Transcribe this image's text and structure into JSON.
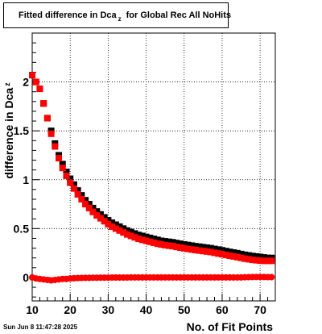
{
  "title": {
    "main": "Fitted difference in Dca",
    "subscript": "z",
    "suffix": "for Global Rec All NoHits"
  },
  "timestamp": "Sun Jun  8 11:47:28 2025",
  "chart_data": {
    "type": "scatter",
    "xlabel": "No. of Fit Points",
    "ylabel": "difference in Dca",
    "ylabel_subscript": "z",
    "xlim": [
      10,
      74
    ],
    "ylim": [
      -0.24,
      2.5
    ],
    "xticks": [
      10,
      20,
      30,
      40,
      50,
      60,
      70
    ],
    "yticks": [
      0,
      0.5,
      1,
      1.5,
      2
    ],
    "ytick_labels": [
      "0",
      "0.5",
      "1",
      "1.5",
      "2"
    ],
    "grid": true,
    "series": [
      {
        "color": "#000000",
        "marker": "square",
        "x": [
          10,
          11,
          12,
          13,
          14,
          15,
          16,
          17,
          18,
          19,
          20,
          21,
          22,
          23,
          24,
          25,
          26,
          27,
          28,
          29,
          30,
          31,
          32,
          33,
          34,
          35,
          36,
          37,
          38,
          39,
          40,
          41,
          42,
          43,
          44,
          45,
          46,
          47,
          48,
          49,
          50,
          51,
          52,
          53,
          54,
          55,
          56,
          57,
          58,
          59,
          60,
          61,
          62,
          63,
          64,
          65,
          66,
          67,
          68,
          69,
          70,
          71,
          72,
          73
        ],
        "y": [
          2.07,
          2.0,
          1.93,
          1.78,
          1.63,
          1.5,
          1.37,
          1.25,
          1.16,
          1.08,
          1.01,
          0.95,
          0.89,
          0.84,
          0.79,
          0.75,
          0.71,
          0.675,
          0.645,
          0.615,
          0.585,
          0.56,
          0.54,
          0.52,
          0.5,
          0.48,
          0.465,
          0.45,
          0.435,
          0.425,
          0.415,
          0.405,
          0.395,
          0.385,
          0.375,
          0.37,
          0.365,
          0.36,
          0.352,
          0.345,
          0.338,
          0.332,
          0.326,
          0.32,
          0.315,
          0.31,
          0.305,
          0.3,
          0.292,
          0.285,
          0.278,
          0.27,
          0.262,
          0.255,
          0.248,
          0.24,
          0.232,
          0.226,
          0.22,
          0.215,
          0.21,
          0.205,
          0.2,
          0.2
        ]
      },
      {
        "color": "#ff0000",
        "marker": "square",
        "x": [
          10,
          11,
          12,
          13,
          14,
          15,
          16,
          17,
          18,
          19,
          20,
          21,
          22,
          23,
          24,
          25,
          26,
          27,
          28,
          29,
          30,
          31,
          32,
          33,
          34,
          35,
          36,
          37,
          38,
          39,
          40,
          41,
          42,
          43,
          44,
          45,
          46,
          47,
          48,
          49,
          50,
          51,
          52,
          53,
          54,
          55,
          56,
          57,
          58,
          59,
          60,
          61,
          62,
          63,
          64,
          65,
          66,
          67,
          68,
          69,
          70,
          71,
          72,
          73
        ],
        "y": [
          2.07,
          2.0,
          1.93,
          1.78,
          1.63,
          1.47,
          1.34,
          1.22,
          1.12,
          1.04,
          0.97,
          0.91,
          0.85,
          0.8,
          0.75,
          0.71,
          0.67,
          0.635,
          0.605,
          0.575,
          0.545,
          0.52,
          0.5,
          0.48,
          0.46,
          0.44,
          0.425,
          0.41,
          0.395,
          0.385,
          0.375,
          0.365,
          0.355,
          0.345,
          0.337,
          0.33,
          0.325,
          0.32,
          0.312,
          0.305,
          0.298,
          0.292,
          0.286,
          0.28,
          0.275,
          0.27,
          0.265,
          0.26,
          0.252,
          0.245,
          0.238,
          0.23,
          0.222,
          0.215,
          0.208,
          0.2,
          0.192,
          0.186,
          0.18,
          0.176,
          0.172,
          0.17,
          0.17,
          0.17
        ]
      },
      {
        "color": "#ff0000",
        "marker": "circle",
        "x": [
          10,
          11,
          12,
          13,
          14,
          15,
          16,
          17,
          18,
          19,
          20,
          21,
          22,
          23,
          24,
          25,
          26,
          27,
          28,
          29,
          30,
          31,
          32,
          33,
          34,
          35,
          36,
          37,
          38,
          39,
          40,
          41,
          42,
          43,
          44,
          45,
          46,
          47,
          48,
          49,
          50,
          51,
          52,
          53,
          54,
          55,
          56,
          57,
          58,
          59,
          60,
          61,
          62,
          63,
          64,
          65,
          66,
          67,
          68,
          69,
          70,
          71,
          72,
          73
        ],
        "y": [
          0.0,
          -0.01,
          -0.015,
          -0.02,
          -0.025,
          -0.03,
          -0.025,
          -0.02,
          -0.015,
          -0.015,
          -0.01,
          -0.008,
          -0.006,
          -0.005,
          -0.004,
          -0.004,
          -0.003,
          -0.003,
          -0.002,
          -0.002,
          -0.002,
          -0.001,
          -0.001,
          -0.001,
          -0.001,
          -0.001,
          0.0,
          0.0,
          0.0,
          0.0,
          0.0,
          0.0,
          0.0,
          0.0,
          0.0,
          0.0,
          0.0,
          0.0,
          0.0,
          0.0,
          0.0,
          0.0,
          0.0,
          0.0,
          0.0,
          0.0,
          0.0,
          0.0,
          0.0,
          0.0,
          0.0,
          0.0,
          0.0,
          0.0,
          0.0,
          0.0,
          0.002,
          0.003,
          0.004,
          0.005,
          0.005,
          0.004,
          0.003,
          0.003
        ]
      }
    ]
  }
}
